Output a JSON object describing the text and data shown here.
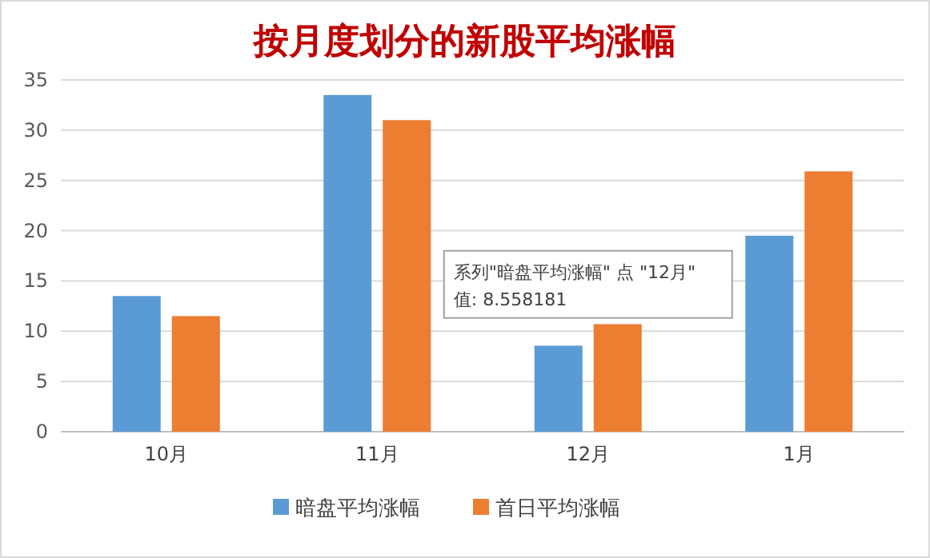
{
  "chart_data": {
    "type": "bar",
    "title": "按月度划分的新股平均涨幅",
    "categories": [
      "10月",
      "11月",
      "12月",
      "1月"
    ],
    "series": [
      {
        "name": "暗盘平均涨幅",
        "color": "#5b9bd5",
        "values": [
          13.5,
          33.5,
          8.56,
          19.5
        ]
      },
      {
        "name": "首日平均涨幅",
        "color": "#ed7d31",
        "values": [
          11.5,
          31,
          10.7,
          25.9
        ]
      }
    ],
    "ylim": [
      0,
      35
    ],
    "yticks": [
      0,
      5,
      10,
      15,
      20,
      25,
      30,
      35
    ],
    "grid": "y",
    "legend": "bottom",
    "annotations": [
      "系列\"暗盘平均涨幅\" 点 \"12月\"\n值: 8.558181"
    ]
  }
}
